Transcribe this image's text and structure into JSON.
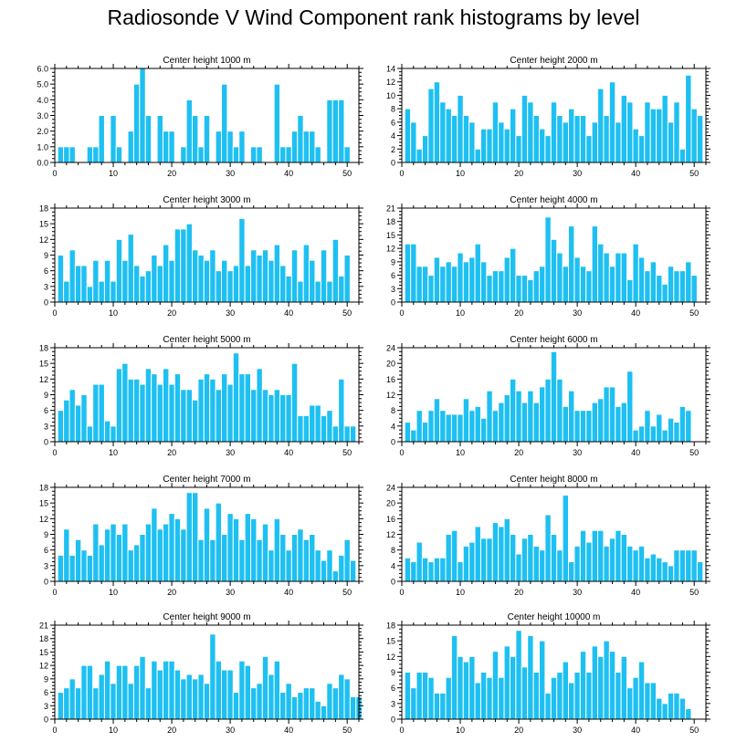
{
  "title": "Radiosonde V Wind Component rank histograms by level",
  "colors": {
    "bar": "#1ec0f2",
    "bar_edge": "#ffffff",
    "axis": "#000000"
  },
  "chart_data": [
    {
      "type": "bar",
      "title": "Center height 1000 m",
      "ylim": [
        0,
        6
      ],
      "yticks": [
        "0.0",
        "1.0",
        "2.0",
        "3.0",
        "4.0",
        "5.0",
        "6.0"
      ],
      "xticks": [
        "0",
        "10",
        "20",
        "30",
        "40",
        "50"
      ],
      "x_start": 1,
      "values": [
        1,
        1,
        1,
        0,
        0,
        1,
        1,
        3,
        0,
        3,
        1,
        0,
        2,
        5,
        6,
        3,
        0,
        3,
        2,
        2,
        0,
        1,
        4,
        3,
        1,
        3,
        0,
        2,
        5,
        2,
        1,
        2,
        0,
        1,
        1,
        0,
        0,
        5,
        1,
        1,
        2,
        3,
        2,
        2,
        1,
        0,
        4,
        4,
        4,
        1
      ]
    },
    {
      "type": "bar",
      "title": "Center height 2000 m",
      "ylim": [
        0,
        14
      ],
      "yticks": [
        "0",
        "2",
        "4",
        "6",
        "8",
        "10",
        "12",
        "14"
      ],
      "xticks": [
        "0",
        "10",
        "20",
        "30",
        "40",
        "50"
      ],
      "x_start": 1,
      "values": [
        8,
        6,
        2,
        4,
        11,
        12,
        9,
        8,
        7,
        10,
        7,
        6,
        2,
        5,
        5,
        9,
        6,
        5,
        8,
        4,
        10,
        9,
        7,
        5,
        4,
        9,
        7,
        6,
        8,
        7,
        7,
        4,
        6,
        11,
        7,
        12,
        6,
        10,
        9,
        5,
        4,
        9,
        8,
        8,
        10,
        6,
        9,
        2,
        13,
        8,
        7
      ]
    },
    {
      "type": "bar",
      "title": "Center height 3000 m",
      "ylim": [
        0,
        18
      ],
      "yticks": [
        "0",
        "3",
        "6",
        "9",
        "12",
        "15",
        "18"
      ],
      "xticks": [
        "0",
        "10",
        "20",
        "30",
        "40",
        "50"
      ],
      "x_start": 1,
      "values": [
        9,
        4,
        10,
        7,
        7,
        3,
        8,
        4,
        8,
        4,
        12,
        8,
        13,
        7,
        5,
        6,
        9,
        7,
        11,
        8,
        14,
        14,
        15,
        10,
        9,
        8,
        10,
        6,
        8,
        6,
        7,
        16,
        7,
        10,
        9,
        10,
        8,
        11,
        7,
        5,
        10,
        4,
        11,
        8,
        4,
        10,
        4,
        12,
        5,
        9
      ]
    },
    {
      "type": "bar",
      "title": "Center height 4000 m",
      "ylim": [
        0,
        21
      ],
      "yticks": [
        "0",
        "3",
        "6",
        "9",
        "12",
        "15",
        "18",
        "21"
      ],
      "xticks": [
        "0",
        "10",
        "20",
        "30",
        "40",
        "50"
      ],
      "x_start": 1,
      "values": [
        13,
        13,
        8,
        8,
        6,
        10,
        8,
        9,
        8,
        11,
        9,
        10,
        13,
        9,
        6,
        7,
        7,
        10,
        12,
        6,
        6,
        5,
        7,
        8,
        19,
        14,
        11,
        8,
        17,
        10,
        8,
        7,
        17,
        13,
        11,
        8,
        11,
        11,
        5,
        13,
        10,
        7,
        9,
        6,
        4,
        8,
        7,
        7,
        9,
        6
      ]
    },
    {
      "type": "bar",
      "title": "Center height 5000 m",
      "ylim": [
        0,
        18
      ],
      "yticks": [
        "0",
        "3",
        "6",
        "9",
        "12",
        "15",
        "18"
      ],
      "xticks": [
        "0",
        "10",
        "20",
        "30",
        "40",
        "50"
      ],
      "x_start": 1,
      "values": [
        6,
        8,
        10,
        7,
        9,
        3,
        11,
        11,
        4,
        3,
        14,
        15,
        12,
        12,
        11,
        14,
        13,
        11,
        14,
        11,
        13,
        10,
        10,
        8,
        12,
        13,
        12,
        10,
        13,
        11,
        17,
        13,
        13,
        10,
        14,
        10,
        9,
        10,
        9,
        9,
        15,
        5,
        5,
        7,
        7,
        5,
        6,
        3,
        12,
        3,
        3
      ]
    },
    {
      "type": "bar",
      "title": "Center height 6000 m",
      "ylim": [
        0,
        24
      ],
      "yticks": [
        "0",
        "4",
        "8",
        "12",
        "16",
        "20",
        "24"
      ],
      "xticks": [
        "0",
        "10",
        "20",
        "30",
        "40",
        "50"
      ],
      "x_start": 1,
      "values": [
        5,
        3,
        8,
        5,
        8,
        11,
        8,
        7,
        7,
        7,
        11,
        8,
        9,
        6,
        13,
        8,
        10,
        12,
        16,
        13,
        10,
        13,
        10,
        14,
        16,
        23,
        16,
        9,
        13,
        8,
        8,
        8,
        10,
        11,
        14,
        14,
        9,
        10,
        18,
        3,
        4,
        8,
        4,
        7,
        3,
        6,
        5,
        9,
        8
      ]
    },
    {
      "type": "bar",
      "title": "Center height 7000 m",
      "ylim": [
        0,
        18
      ],
      "yticks": [
        "0",
        "3",
        "6",
        "9",
        "12",
        "15",
        "18"
      ],
      "xticks": [
        "0",
        "10",
        "20",
        "30",
        "40",
        "50"
      ],
      "x_start": 1,
      "values": [
        5,
        10,
        5,
        8,
        6,
        5,
        11,
        7,
        10,
        11,
        9,
        11,
        6,
        7,
        9,
        11,
        14,
        10,
        11,
        13,
        12,
        10,
        17,
        17,
        8,
        14,
        8,
        15,
        9,
        13,
        12,
        8,
        13,
        12,
        8,
        11,
        6,
        12,
        9,
        6,
        9,
        10,
        8,
        9,
        6,
        4,
        6,
        2,
        5,
        8,
        4
      ]
    },
    {
      "type": "bar",
      "title": "Center height 8000 m",
      "ylim": [
        0,
        24
      ],
      "yticks": [
        "0",
        "4",
        "8",
        "12",
        "16",
        "20",
        "24"
      ],
      "xticks": [
        "0",
        "10",
        "20",
        "30",
        "40",
        "50"
      ],
      "x_start": 1,
      "values": [
        6,
        5,
        10,
        6,
        5,
        6,
        6,
        12,
        13,
        5,
        9,
        10,
        14,
        11,
        11,
        15,
        14,
        16,
        12,
        7,
        11,
        12,
        9,
        8,
        17,
        12,
        8,
        22,
        5,
        9,
        13,
        10,
        13,
        13,
        9,
        11,
        13,
        12,
        9,
        8,
        9,
        6,
        7,
        6,
        5,
        4,
        8,
        8,
        8,
        8,
        5
      ]
    },
    {
      "type": "bar",
      "title": "Center height 9000 m",
      "ylim": [
        0,
        21
      ],
      "yticks": [
        "0",
        "3",
        "6",
        "9",
        "12",
        "15",
        "18",
        "21"
      ],
      "xticks": [
        "0",
        "10",
        "20",
        "30",
        "40",
        "50"
      ],
      "x_start": 1,
      "values": [
        6,
        7,
        9,
        7,
        12,
        12,
        7,
        10,
        13,
        8,
        12,
        12,
        8,
        12,
        14,
        7,
        13,
        11,
        13,
        13,
        11,
        9,
        10,
        9,
        10,
        8,
        19,
        13,
        11,
        11,
        6,
        13,
        12,
        7,
        8,
        14,
        10,
        13,
        6,
        8,
        5,
        6,
        7,
        7,
        4,
        3,
        8,
        7,
        10,
        9,
        5,
        5
      ]
    },
    {
      "type": "bar",
      "title": "Center height 10000 m",
      "ylim": [
        0,
        18
      ],
      "yticks": [
        "0",
        "3",
        "6",
        "9",
        "12",
        "15",
        "18"
      ],
      "xticks": [
        "0",
        "10",
        "20",
        "30",
        "40",
        "50"
      ],
      "x_start": 1,
      "values": [
        9,
        6,
        9,
        9,
        8,
        5,
        5,
        8,
        16,
        12,
        11,
        12,
        7,
        9,
        8,
        13,
        8,
        14,
        12,
        17,
        10,
        16,
        9,
        15,
        5,
        8,
        9,
        11,
        7,
        9,
        13,
        9,
        14,
        12,
        15,
        13,
        9,
        12,
        6,
        8,
        11,
        7,
        7,
        4,
        3,
        5,
        5,
        4,
        2
      ]
    }
  ]
}
